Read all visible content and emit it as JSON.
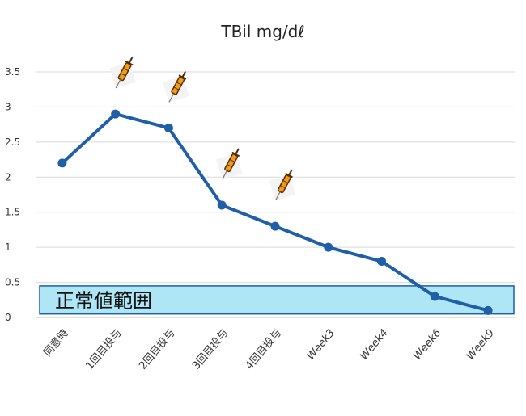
{
  "chart_data": {
    "type": "line",
    "title": "TBil mg/dℓ",
    "categories": [
      "同意時",
      "1回目投与",
      "2回目投与",
      "3回目投与",
      "4回目投与",
      "Week3",
      "Week4",
      "Week6",
      "Week9"
    ],
    "series": [
      {
        "values": [
          2.2,
          2.9,
          2.7,
          1.6,
          1.3,
          1.0,
          0.8,
          0.3,
          0.1
        ]
      }
    ],
    "ylim": [
      0,
      3.5
    ],
    "yticks": [
      "0",
      "0.5",
      "1",
      "1.5",
      "2",
      "2.5",
      "3",
      "3.5"
    ],
    "grid": true,
    "normal_range": {
      "label": "正常値範囲",
      "from": 0.05,
      "to": 0.45
    },
    "injection_markers": [
      {
        "category": "1回目投与",
        "icon": "syringe-icon"
      },
      {
        "category": "2回目投与",
        "icon": "syringe-icon"
      },
      {
        "category": "3回目投与",
        "icon": "syringe-icon"
      },
      {
        "category": "4回目投与",
        "icon": "syringe-icon"
      }
    ],
    "colors": {
      "line": "#1f5fa8",
      "band_fill": "#aee6f6",
      "band_border": "#1a5ea8",
      "grid": "#d9d9d9"
    }
  }
}
